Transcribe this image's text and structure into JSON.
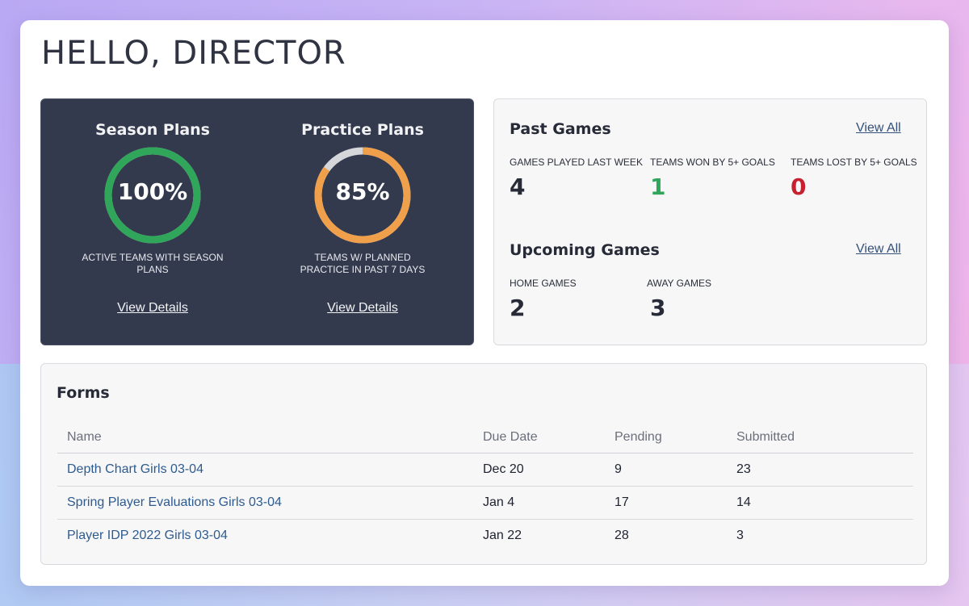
{
  "page_title": "HELLO, DIRECTOR",
  "colors": {
    "panel_dark": "#333a4d",
    "green": "#2fa65a",
    "orange": "#f0a04b",
    "ring_track": "#d4d6da",
    "red": "#c8202f",
    "link_blue": "#2e5b8f"
  },
  "plans": [
    {
      "title": "Season Plans",
      "value": "100%",
      "percent": 100,
      "description": "ACTIVE TEAMS WITH SEASON PLANS",
      "link": "View Details"
    },
    {
      "title": "Practice Plans",
      "value": "85%",
      "percent": 85,
      "description": "TEAMS W/ PLANNED PRACTICE IN PAST 7 DAYS",
      "link": "View Details"
    }
  ],
  "past_games": {
    "title": "Past Games",
    "view_all": "View All",
    "stats": [
      {
        "label": "GAMES PLAYED LAST WEEK",
        "value": "4"
      },
      {
        "label": "TEAMS WON BY 5+ GOALS",
        "value": "1"
      },
      {
        "label": "TEAMS LOST BY 5+ GOALS",
        "value": "0"
      }
    ]
  },
  "upcoming_games": {
    "title": "Upcoming Games",
    "view_all": "View All",
    "stats": [
      {
        "label": "HOME GAMES",
        "value": "2"
      },
      {
        "label": "AWAY GAMES",
        "value": "3"
      }
    ]
  },
  "forms": {
    "title": "Forms",
    "columns": [
      "Name",
      "Due Date",
      "Pending",
      "Submitted"
    ],
    "rows": [
      {
        "name": "Depth Chart Girls 03-04",
        "due": "Dec 20",
        "pending": "9",
        "submitted": "23"
      },
      {
        "name": "Spring Player Evaluations Girls 03-04",
        "due": "Jan 4",
        "pending": "17",
        "submitted": "14"
      },
      {
        "name": "Player IDP 2022 Girls 03-04",
        "due": "Jan 22",
        "pending": "28",
        "submitted": "3"
      }
    ]
  }
}
